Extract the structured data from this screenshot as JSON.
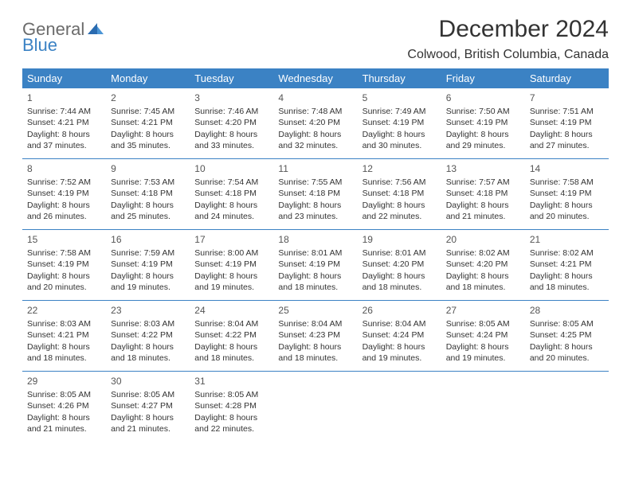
{
  "logo": {
    "text1": "General",
    "text2": "Blue"
  },
  "title": "December 2024",
  "location": "Colwood, British Columbia, Canada",
  "colors": {
    "headerBg": "#3b82c4",
    "headerText": "#ffffff",
    "bodyText": "#333333",
    "logoGray": "#6b6b6b",
    "logoBlue": "#3b82c4",
    "divider": "#3b82c4"
  },
  "dayNames": [
    "Sunday",
    "Monday",
    "Tuesday",
    "Wednesday",
    "Thursday",
    "Friday",
    "Saturday"
  ],
  "weeks": [
    [
      {
        "num": "1",
        "sunrise": "Sunrise: 7:44 AM",
        "sunset": "Sunset: 4:21 PM",
        "daylight": "Daylight: 8 hours and 37 minutes."
      },
      {
        "num": "2",
        "sunrise": "Sunrise: 7:45 AM",
        "sunset": "Sunset: 4:21 PM",
        "daylight": "Daylight: 8 hours and 35 minutes."
      },
      {
        "num": "3",
        "sunrise": "Sunrise: 7:46 AM",
        "sunset": "Sunset: 4:20 PM",
        "daylight": "Daylight: 8 hours and 33 minutes."
      },
      {
        "num": "4",
        "sunrise": "Sunrise: 7:48 AM",
        "sunset": "Sunset: 4:20 PM",
        "daylight": "Daylight: 8 hours and 32 minutes."
      },
      {
        "num": "5",
        "sunrise": "Sunrise: 7:49 AM",
        "sunset": "Sunset: 4:19 PM",
        "daylight": "Daylight: 8 hours and 30 minutes."
      },
      {
        "num": "6",
        "sunrise": "Sunrise: 7:50 AM",
        "sunset": "Sunset: 4:19 PM",
        "daylight": "Daylight: 8 hours and 29 minutes."
      },
      {
        "num": "7",
        "sunrise": "Sunrise: 7:51 AM",
        "sunset": "Sunset: 4:19 PM",
        "daylight": "Daylight: 8 hours and 27 minutes."
      }
    ],
    [
      {
        "num": "8",
        "sunrise": "Sunrise: 7:52 AM",
        "sunset": "Sunset: 4:19 PM",
        "daylight": "Daylight: 8 hours and 26 minutes."
      },
      {
        "num": "9",
        "sunrise": "Sunrise: 7:53 AM",
        "sunset": "Sunset: 4:18 PM",
        "daylight": "Daylight: 8 hours and 25 minutes."
      },
      {
        "num": "10",
        "sunrise": "Sunrise: 7:54 AM",
        "sunset": "Sunset: 4:18 PM",
        "daylight": "Daylight: 8 hours and 24 minutes."
      },
      {
        "num": "11",
        "sunrise": "Sunrise: 7:55 AM",
        "sunset": "Sunset: 4:18 PM",
        "daylight": "Daylight: 8 hours and 23 minutes."
      },
      {
        "num": "12",
        "sunrise": "Sunrise: 7:56 AM",
        "sunset": "Sunset: 4:18 PM",
        "daylight": "Daylight: 8 hours and 22 minutes."
      },
      {
        "num": "13",
        "sunrise": "Sunrise: 7:57 AM",
        "sunset": "Sunset: 4:18 PM",
        "daylight": "Daylight: 8 hours and 21 minutes."
      },
      {
        "num": "14",
        "sunrise": "Sunrise: 7:58 AM",
        "sunset": "Sunset: 4:19 PM",
        "daylight": "Daylight: 8 hours and 20 minutes."
      }
    ],
    [
      {
        "num": "15",
        "sunrise": "Sunrise: 7:58 AM",
        "sunset": "Sunset: 4:19 PM",
        "daylight": "Daylight: 8 hours and 20 minutes."
      },
      {
        "num": "16",
        "sunrise": "Sunrise: 7:59 AM",
        "sunset": "Sunset: 4:19 PM",
        "daylight": "Daylight: 8 hours and 19 minutes."
      },
      {
        "num": "17",
        "sunrise": "Sunrise: 8:00 AM",
        "sunset": "Sunset: 4:19 PM",
        "daylight": "Daylight: 8 hours and 19 minutes."
      },
      {
        "num": "18",
        "sunrise": "Sunrise: 8:01 AM",
        "sunset": "Sunset: 4:19 PM",
        "daylight": "Daylight: 8 hours and 18 minutes."
      },
      {
        "num": "19",
        "sunrise": "Sunrise: 8:01 AM",
        "sunset": "Sunset: 4:20 PM",
        "daylight": "Daylight: 8 hours and 18 minutes."
      },
      {
        "num": "20",
        "sunrise": "Sunrise: 8:02 AM",
        "sunset": "Sunset: 4:20 PM",
        "daylight": "Daylight: 8 hours and 18 minutes."
      },
      {
        "num": "21",
        "sunrise": "Sunrise: 8:02 AM",
        "sunset": "Sunset: 4:21 PM",
        "daylight": "Daylight: 8 hours and 18 minutes."
      }
    ],
    [
      {
        "num": "22",
        "sunrise": "Sunrise: 8:03 AM",
        "sunset": "Sunset: 4:21 PM",
        "daylight": "Daylight: 8 hours and 18 minutes."
      },
      {
        "num": "23",
        "sunrise": "Sunrise: 8:03 AM",
        "sunset": "Sunset: 4:22 PM",
        "daylight": "Daylight: 8 hours and 18 minutes."
      },
      {
        "num": "24",
        "sunrise": "Sunrise: 8:04 AM",
        "sunset": "Sunset: 4:22 PM",
        "daylight": "Daylight: 8 hours and 18 minutes."
      },
      {
        "num": "25",
        "sunrise": "Sunrise: 8:04 AM",
        "sunset": "Sunset: 4:23 PM",
        "daylight": "Daylight: 8 hours and 18 minutes."
      },
      {
        "num": "26",
        "sunrise": "Sunrise: 8:04 AM",
        "sunset": "Sunset: 4:24 PM",
        "daylight": "Daylight: 8 hours and 19 minutes."
      },
      {
        "num": "27",
        "sunrise": "Sunrise: 8:05 AM",
        "sunset": "Sunset: 4:24 PM",
        "daylight": "Daylight: 8 hours and 19 minutes."
      },
      {
        "num": "28",
        "sunrise": "Sunrise: 8:05 AM",
        "sunset": "Sunset: 4:25 PM",
        "daylight": "Daylight: 8 hours and 20 minutes."
      }
    ],
    [
      {
        "num": "29",
        "sunrise": "Sunrise: 8:05 AM",
        "sunset": "Sunset: 4:26 PM",
        "daylight": "Daylight: 8 hours and 21 minutes."
      },
      {
        "num": "30",
        "sunrise": "Sunrise: 8:05 AM",
        "sunset": "Sunset: 4:27 PM",
        "daylight": "Daylight: 8 hours and 21 minutes."
      },
      {
        "num": "31",
        "sunrise": "Sunrise: 8:05 AM",
        "sunset": "Sunset: 4:28 PM",
        "daylight": "Daylight: 8 hours and 22 minutes."
      },
      null,
      null,
      null,
      null
    ]
  ]
}
